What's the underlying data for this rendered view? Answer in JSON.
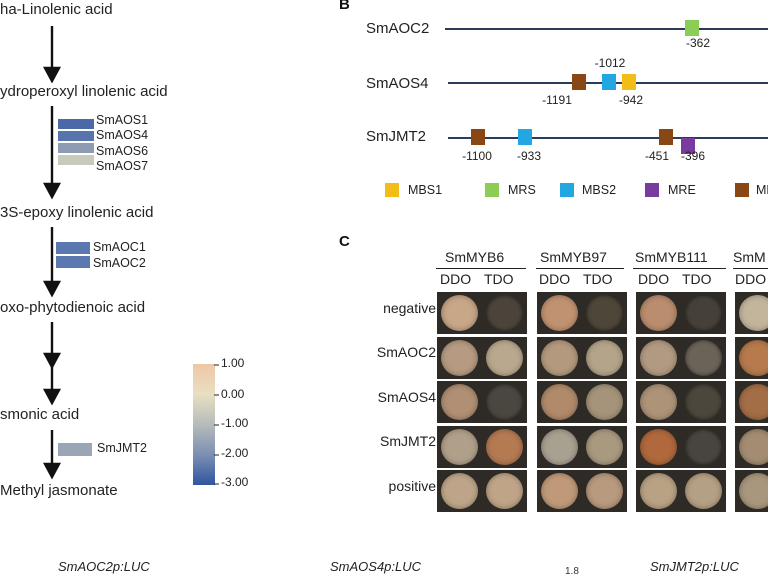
{
  "panel_a": {
    "compounds": [
      "ha-Linolenic acid",
      "ydroperoxyl linolenic acid",
      "3S-epoxy linolenic acid",
      "oxo-phytodienoic acid",
      "smonic acid",
      "Methyl jasmonate"
    ],
    "enzyme_groups": [
      [
        {
          "name": "SmAOS1",
          "color": "#4b69a6"
        },
        {
          "name": "SmAOS4",
          "color": "#5774ac"
        },
        {
          "name": "SmAOS6",
          "color": "#8d9cb3"
        },
        {
          "name": "SmAOS7",
          "color": "#c8cabc"
        }
      ],
      [
        {
          "name": "SmAOC1",
          "color": "#5b78b0"
        },
        {
          "name": "SmAOC2",
          "color": "#5b78b0"
        }
      ],
      [
        {
          "name": "SmJMT2",
          "color": "#9aa6b6"
        }
      ]
    ],
    "colorbar": {
      "ticks": [
        "1.00",
        "0.00",
        "-1.00",
        "-2.00",
        "-3.00"
      ],
      "colors": [
        "#eec7a4",
        "#e8dfc2",
        "#b7bcb9",
        "#7b8fb2",
        "#2f56a0"
      ]
    }
  },
  "panel_b": {
    "label": "B",
    "genes": [
      {
        "name": "SmAOC2",
        "motifs": [
          {
            "type": "MRS",
            "pos": "-362"
          }
        ]
      },
      {
        "name": "SmAOS4",
        "motifs": [
          {
            "type": "MBS2",
            "pos": "-1012"
          },
          {
            "type": "MRE",
            "pos": "-1191"
          },
          {
            "type": "MBS1",
            "pos": "-942"
          }
        ]
      },
      {
        "name": "SmJMT2",
        "motifs": [
          {
            "type": "MRE",
            "pos": "-1100"
          },
          {
            "type": "MBS2",
            "pos": "-933"
          },
          {
            "type": "MRE",
            "pos": "-451"
          },
          {
            "type": "MRE2",
            "pos": "-396"
          }
        ]
      }
    ],
    "legend": [
      {
        "name": "MBS1",
        "color": "#f2bd17"
      },
      {
        "name": "MRS",
        "color": "#8ccd55"
      },
      {
        "name": "MBS2",
        "color": "#23a7e3"
      },
      {
        "name": "MRE",
        "color": "#7a3b9e"
      },
      {
        "name": "ME",
        "color": "#8a4716"
      }
    ]
  },
  "panel_c": {
    "label": "C",
    "groups": [
      "SmMYB6",
      "SmMYB97",
      "SmMYB111",
      "SmM"
    ],
    "media": [
      "DDO",
      "TDO",
      "DDO",
      "TDO",
      "DDO",
      "TDO",
      "DDO"
    ],
    "rows": [
      "negative",
      "SmAOC2",
      "SmAOS4",
      "SmJMT2",
      "positive"
    ]
  },
  "bottom_labels": [
    "SmAOC2p:LUC",
    "SmAOS4p:LUC",
    "1.8",
    "SmJMT2p:LUC"
  ],
  "colors": {
    "promoter_line": "#2b3c5a",
    "arrow": "#111111",
    "mre_brown": "#8a4716"
  }
}
